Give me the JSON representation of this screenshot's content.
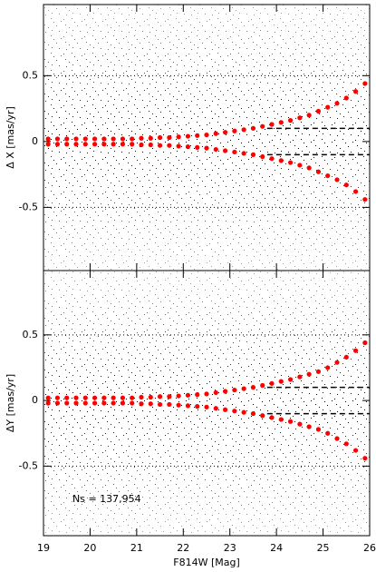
{
  "chart_data": [
    {
      "type": "scatter",
      "ylabel": "Δ X [mas/yr]",
      "xlim": [
        19,
        26
      ],
      "xticks": [
        19,
        20,
        21,
        22,
        23,
        24,
        25,
        26
      ],
      "ylim": [
        -0.98,
        1.04
      ],
      "yticks": [
        0.5,
        0,
        -0.5
      ],
      "x": [
        19.1,
        19.3,
        19.5,
        19.7,
        19.9,
        20.1,
        20.3,
        20.5,
        20.7,
        20.9,
        21.1,
        21.3,
        21.5,
        21.7,
        21.9,
        22.1,
        22.3,
        22.5,
        22.7,
        22.9,
        23.1,
        23.3,
        23.5,
        23.7,
        23.9,
        24.1,
        24.3,
        24.5,
        24.7,
        24.9,
        25.1,
        25.3,
        25.5,
        25.7,
        25.9
      ],
      "series": [
        {
          "color": "#ff0000",
          "values": [
            0.02,
            0.02,
            0.02,
            0.02,
            0.02,
            0.02,
            0.02,
            0.02,
            0.02,
            0.02,
            0.025,
            0.025,
            0.03,
            0.03,
            0.035,
            0.04,
            0.045,
            0.05,
            0.06,
            0.07,
            0.08,
            0.09,
            0.1,
            0.115,
            0.13,
            0.145,
            0.16,
            0.18,
            0.2,
            0.23,
            0.26,
            0.29,
            0.33,
            0.38,
            0.44
          ]
        },
        {
          "color": "#ff0000",
          "values": [
            -0.02,
            -0.02,
            -0.02,
            -0.02,
            -0.02,
            -0.02,
            -0.02,
            -0.02,
            -0.02,
            -0.02,
            -0.025,
            -0.025,
            -0.03,
            -0.03,
            -0.035,
            -0.04,
            -0.045,
            -0.05,
            -0.06,
            -0.07,
            -0.08,
            -0.09,
            -0.1,
            -0.115,
            -0.13,
            -0.145,
            -0.16,
            -0.18,
            -0.2,
            -0.23,
            -0.26,
            -0.29,
            -0.33,
            -0.38,
            -0.44
          ]
        }
      ],
      "hlines": [
        {
          "y": 0.5,
          "style": "dotted"
        },
        {
          "y": -0.5,
          "style": "dotted"
        },
        {
          "y": 0.1,
          "style": "dashed",
          "x0": 23.8
        },
        {
          "y": -0.1,
          "style": "dashed",
          "x0": 23.8
        }
      ]
    },
    {
      "type": "scatter",
      "ylabel": "ΔY [mas/yr]",
      "xlabel": "F814W [Mag]",
      "annotation": "Ns = 137,954",
      "xlim": [
        19,
        26
      ],
      "xticks": [
        19,
        20,
        21,
        22,
        23,
        24,
        25,
        26
      ],
      "ylim": [
        -1.03,
        0.99
      ],
      "yticks": [
        0.5,
        0,
        -0.5
      ],
      "x": [
        19.1,
        19.3,
        19.5,
        19.7,
        19.9,
        20.1,
        20.3,
        20.5,
        20.7,
        20.9,
        21.1,
        21.3,
        21.5,
        21.7,
        21.9,
        22.1,
        22.3,
        22.5,
        22.7,
        22.9,
        23.1,
        23.3,
        23.5,
        23.7,
        23.9,
        24.1,
        24.3,
        24.5,
        24.7,
        24.9,
        25.1,
        25.3,
        25.5,
        25.7,
        25.9
      ],
      "series": [
        {
          "color": "#ff0000",
          "values": [
            0.02,
            0.02,
            0.02,
            0.02,
            0.02,
            0.02,
            0.02,
            0.02,
            0.02,
            0.02,
            0.025,
            0.025,
            0.03,
            0.03,
            0.035,
            0.04,
            0.045,
            0.05,
            0.06,
            0.07,
            0.08,
            0.09,
            0.1,
            0.115,
            0.13,
            0.145,
            0.16,
            0.18,
            0.2,
            0.22,
            0.25,
            0.29,
            0.33,
            0.38,
            0.44
          ]
        },
        {
          "color": "#ff0000",
          "values": [
            -0.02,
            -0.02,
            -0.02,
            -0.02,
            -0.02,
            -0.02,
            -0.02,
            -0.02,
            -0.02,
            -0.02,
            -0.025,
            -0.025,
            -0.03,
            -0.03,
            -0.035,
            -0.04,
            -0.045,
            -0.05,
            -0.06,
            -0.07,
            -0.08,
            -0.09,
            -0.1,
            -0.115,
            -0.13,
            -0.145,
            -0.16,
            -0.18,
            -0.2,
            -0.22,
            -0.25,
            -0.29,
            -0.33,
            -0.38,
            -0.44
          ]
        }
      ],
      "hlines": [
        {
          "y": 0.5,
          "style": "dotted"
        },
        {
          "y": -0.5,
          "style": "dotted"
        },
        {
          "y": 0.1,
          "style": "dashed",
          "x0": 23.8
        },
        {
          "y": -0.1,
          "style": "dashed",
          "x0": 23.8
        }
      ]
    }
  ]
}
